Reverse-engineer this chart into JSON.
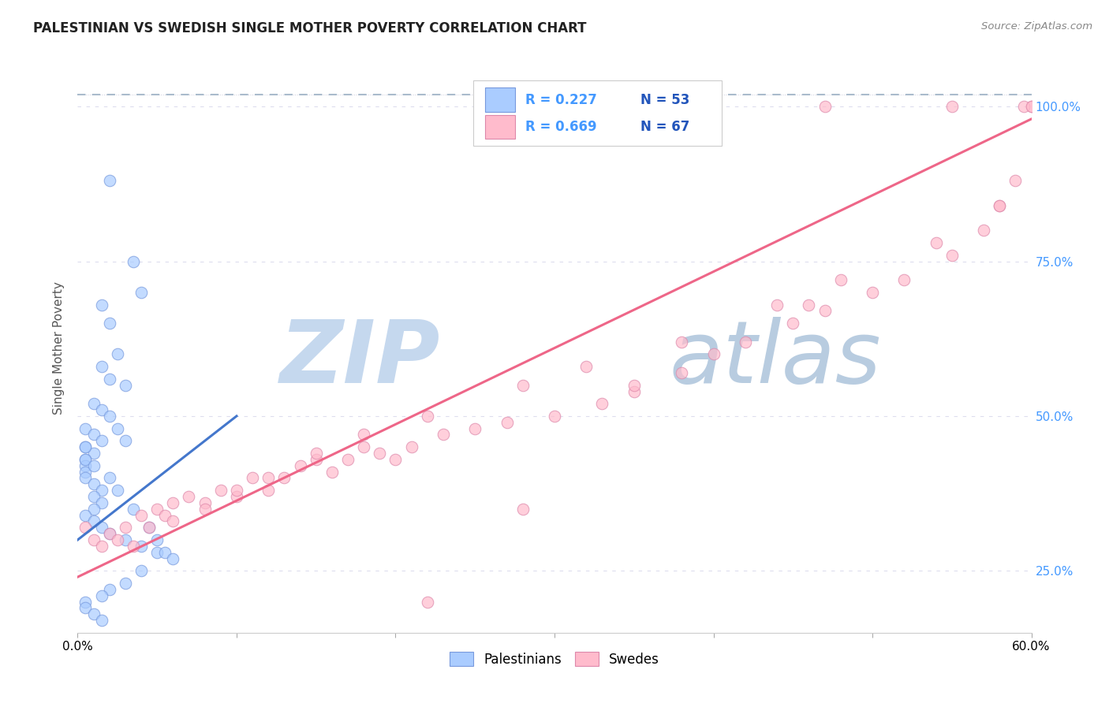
{
  "title": "PALESTINIAN VS SWEDISH SINGLE MOTHER POVERTY CORRELATION CHART",
  "source": "Source: ZipAtlas.com",
  "ylabel": "Single Mother Poverty",
  "legend_label_blue": "Palestinians",
  "legend_label_pink": "Swedes",
  "blue_color": "#aaccff",
  "pink_color": "#ffbbcc",
  "blue_edge_color": "#7799dd",
  "pink_edge_color": "#dd88aa",
  "blue_line_color": "#4477cc",
  "pink_line_color": "#ee6688",
  "grey_dash_color": "#aabbcc",
  "legend_R_color": "#4499ff",
  "legend_N_color": "#2255bb",
  "watermark_ZIP_color": "#c5d8ee",
  "watermark_atlas_color": "#b8cce0",
  "xmin": 0,
  "xmax": 60,
  "ymin": 15,
  "ymax": 107,
  "ytick_vals": [
    25,
    50,
    75,
    100
  ],
  "ytick_labels": [
    "25.0%",
    "50.0%",
    "75.0%",
    "100.0%"
  ],
  "blue_line": [
    [
      0,
      10
    ],
    [
      30,
      50
    ]
  ],
  "pink_line": [
    [
      0,
      60
    ],
    [
      24,
      98
    ]
  ],
  "grey_dashed_line": [
    [
      0,
      60
    ],
    [
      102,
      102
    ]
  ],
  "blue_scatter_x": [
    2.0,
    3.5,
    4.0,
    1.5,
    2.0,
    2.5,
    1.5,
    2.0,
    3.0,
    1.0,
    1.5,
    2.0,
    0.5,
    1.0,
    1.5,
    0.5,
    1.0,
    0.5,
    0.5,
    0.5,
    0.5,
    1.0,
    1.5,
    1.0,
    1.5,
    1.0,
    0.5,
    1.0,
    1.5,
    2.0,
    3.0,
    4.0,
    5.0,
    5.5,
    6.0,
    2.5,
    3.0,
    0.5,
    0.5,
    1.0,
    2.0,
    2.5,
    3.5,
    4.5,
    5.0,
    4.0,
    3.0,
    2.0,
    1.5,
    0.5,
    0.5,
    1.0,
    1.5
  ],
  "blue_scatter_y": [
    88,
    75,
    70,
    68,
    65,
    60,
    58,
    56,
    55,
    52,
    51,
    50,
    48,
    47,
    46,
    45,
    44,
    43,
    42,
    41,
    40,
    39,
    38,
    37,
    36,
    35,
    34,
    33,
    32,
    31,
    30,
    29,
    28,
    28,
    27,
    48,
    46,
    45,
    43,
    42,
    40,
    38,
    35,
    32,
    30,
    25,
    23,
    22,
    21,
    20,
    19,
    18,
    17
  ],
  "pink_scatter_x": [
    0.5,
    1.0,
    1.5,
    2.0,
    2.5,
    3.0,
    3.5,
    4.0,
    4.5,
    5.0,
    5.5,
    6.0,
    7.0,
    8.0,
    9.0,
    10.0,
    11.0,
    12.0,
    13.0,
    14.0,
    15.0,
    16.0,
    17.0,
    18.0,
    19.0,
    20.0,
    21.0,
    23.0,
    25.0,
    27.0,
    30.0,
    33.0,
    35.0,
    38.0,
    40.0,
    42.0,
    45.0,
    47.0,
    50.0,
    52.0,
    55.0,
    57.0,
    58.0,
    59.0,
    60.0,
    6.0,
    8.0,
    10.0,
    12.0,
    15.0,
    18.0,
    22.0,
    28.0,
    32.0,
    38.0,
    44.0,
    48.0,
    54.0,
    58.0,
    59.5,
    60.0,
    46.0,
    47.0,
    55.0,
    35.0,
    28.0,
    22.0
  ],
  "pink_scatter_y": [
    32,
    30,
    29,
    31,
    30,
    32,
    29,
    34,
    32,
    35,
    34,
    36,
    37,
    36,
    38,
    37,
    40,
    38,
    40,
    42,
    43,
    41,
    43,
    45,
    44,
    43,
    45,
    47,
    48,
    49,
    50,
    52,
    54,
    57,
    60,
    62,
    65,
    67,
    70,
    72,
    76,
    80,
    84,
    88,
    100,
    33,
    35,
    38,
    40,
    44,
    47,
    50,
    55,
    58,
    62,
    68,
    72,
    78,
    84,
    100,
    100,
    68,
    100,
    100,
    55,
    35,
    20
  ]
}
